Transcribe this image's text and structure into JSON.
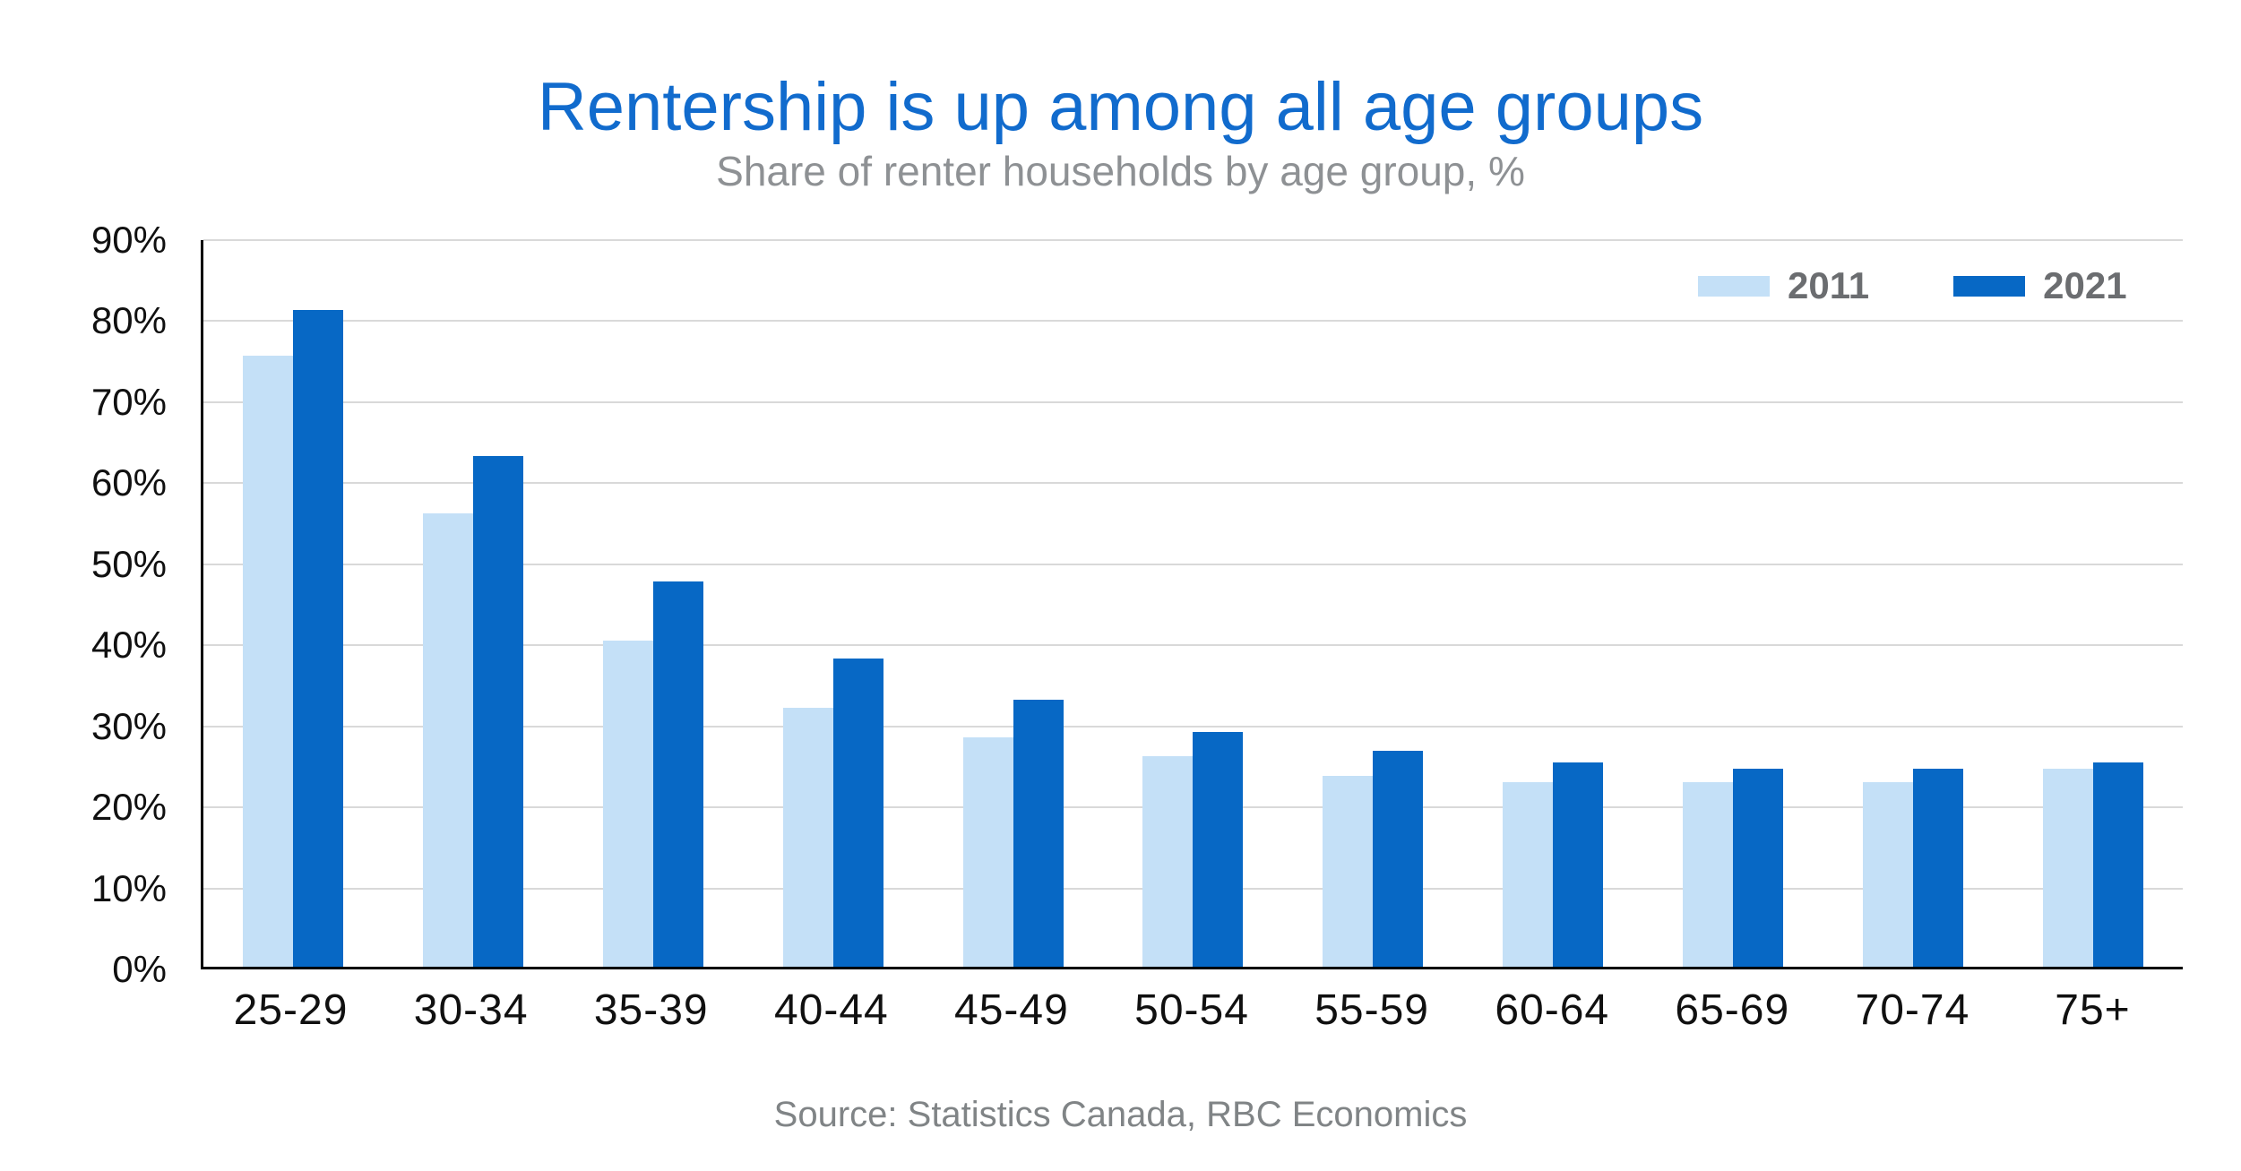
{
  "chart_data": {
    "type": "bar",
    "title": "Rentership is up among all age groups",
    "subtitle": "Share of renter households by age group, %",
    "source": "Source: Statistics Canada, RBC Economics",
    "categories": [
      "25-29",
      "30-34",
      "35-39",
      "40-44",
      "45-49",
      "50-54",
      "55-59",
      "60-64",
      "65-69",
      "70-74",
      "75+"
    ],
    "series": [
      {
        "name": "2011",
        "color": "#C4E0F7",
        "values": [
          75.4,
          56.0,
          40.3,
          32.0,
          28.3,
          26.0,
          23.5,
          22.8,
          22.8,
          22.8,
          24.4
        ]
      },
      {
        "name": "2021",
        "color": "#0768C5",
        "values": [
          81.0,
          63.0,
          47.5,
          38.0,
          33.0,
          29.0,
          26.7,
          25.2,
          24.4,
          24.4,
          25.2
        ]
      }
    ],
    "ylim": [
      0,
      90
    ],
    "ytick_step": 10,
    "ytick_labels": [
      "0%",
      "10%",
      "20%",
      "30%",
      "40%",
      "50%",
      "60%",
      "70%",
      "80%",
      "90%"
    ],
    "grid": "horizontal-on",
    "legend_position": "top-right-inside",
    "colors": {
      "title_text": "#116BCD",
      "subtitle_text": "#8E9194",
      "legend_text": "#6B6D70",
      "source_text": "#808486",
      "tick_text": "#101010",
      "gridline": "#D9D9D9",
      "axis_line": "#000000"
    }
  }
}
